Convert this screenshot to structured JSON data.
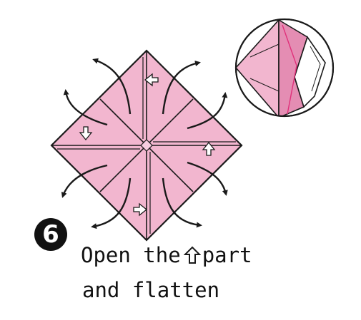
{
  "step": {
    "number": "6"
  },
  "instruction": {
    "line1_before": "Open the",
    "line1_after": "part",
    "line2": "and flatten"
  },
  "colors": {
    "paper": "#f2b6cf",
    "paper_dark": "#e48db3",
    "outline": "#1a1a1a",
    "accent_line": "#e0307a"
  },
  "icons": {
    "inline": "up-arrow-outline-icon",
    "fold_arrows": "curved-arrow-icon",
    "markers": "open-arrow-icon"
  }
}
